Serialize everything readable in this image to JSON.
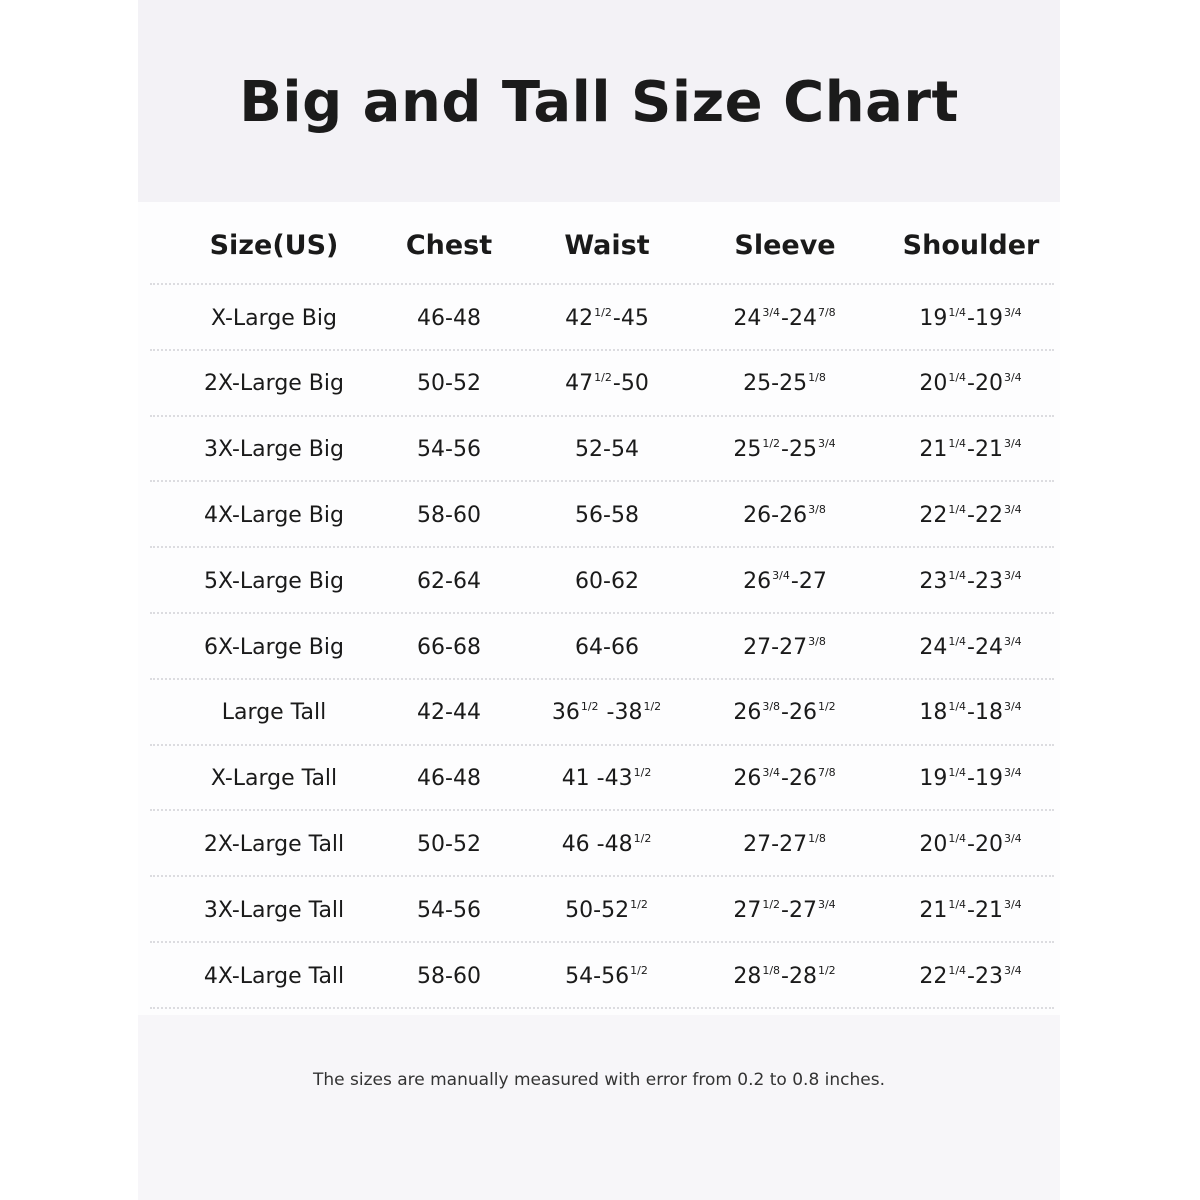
{
  "title": "Big and Tall Size Chart",
  "table": {
    "headers": [
      "Size(US)",
      "Chest",
      "Waist",
      "Sleeve",
      "Shoulder"
    ],
    "rows": [
      [
        "X-Large Big",
        "46-48",
        "42 1/2-45",
        "24 3/4-24 7/8",
        "19 1/4-19 3/4"
      ],
      [
        "2X-Large Big",
        "50-52",
        "47 1/2-50",
        "25-25 1/8",
        "20 1/4-20 3/4"
      ],
      [
        "3X-Large Big",
        "54-56",
        "52-54",
        "25 1/2-25 3/4",
        "21 1/4-21 3/4"
      ],
      [
        "4X-Large Big",
        "58-60",
        "56-58",
        "26-26 3/8",
        "22 1/4-22 3/4"
      ],
      [
        "5X-Large Big",
        "62-64",
        "60-62",
        "26 3/4-27",
        "23 1/4-23 3/4"
      ],
      [
        "6X-Large Big",
        "66-68",
        "64-66",
        "27-27 3/8",
        "24 1/4-24 3/4"
      ],
      [
        "Large Tall",
        "42-44",
        "36 1/2 -38 1/2",
        "26 3/8-26 1/2",
        "18 1/4-18 3/4"
      ],
      [
        "X-Large Tall",
        "46-48",
        "41 -43 1/2",
        "26 3/4-26 7/8",
        "19 1/4-19 3/4"
      ],
      [
        "2X-Large Tall",
        "50-52",
        "46 -48 1/2",
        "27-27 1/8",
        "20 1/4-20 3/4"
      ],
      [
        "3X-Large Tall",
        "54-56",
        "50-52 1/2",
        "27 1/2-27 3/4",
        "21 1/4-21 3/4"
      ],
      [
        "4X-Large Tall",
        "58-60",
        "54-56 1/2",
        "28 1/8-28 1/2",
        "22 1/4-23 3/4"
      ]
    ]
  },
  "footnote": "The sizes are manually measured with error from 0.2 to 0.8 inches."
}
